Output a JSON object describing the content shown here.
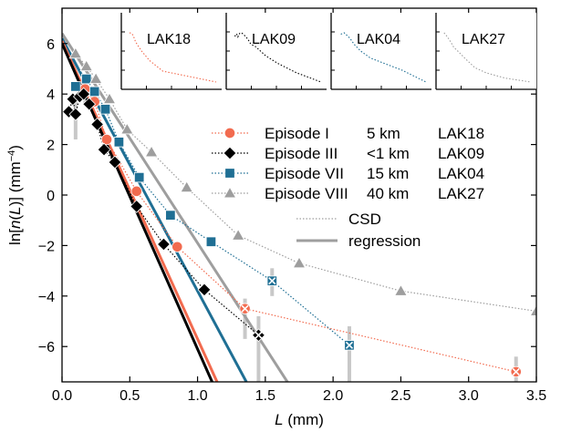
{
  "chart_data": {
    "type": "scatter",
    "xlabel_prefix": "L",
    "xlabel_unit": " (mm)",
    "ylabel_prefix": "ln[",
    "ylabel_var": "n",
    "ylabel_mid": "(",
    "ylabel_var2": "L",
    "ylabel_mid2": ")] (mm",
    "ylabel_sup": "−4",
    "ylabel_suffix": ")",
    "xlim": [
      0,
      3.5
    ],
    "ylim": [
      -7.4,
      7.4
    ],
    "xticks": [
      "0.0",
      "0.5",
      "1.0",
      "1.5",
      "2.0",
      "2.5",
      "3.0",
      "3.5"
    ],
    "xtick_values": [
      0,
      0.5,
      1.0,
      1.5,
      2.0,
      2.5,
      3.0,
      3.5
    ],
    "yticks": [
      "6",
      "4",
      "2",
      "0",
      "−2",
      "−4",
      "−6"
    ],
    "ytick_values": [
      6,
      4,
      2,
      0,
      -2,
      -4,
      -6
    ],
    "grid": false,
    "legend_position": "center-right",
    "series": [
      {
        "name": "Episode I",
        "distance": "5 km",
        "sample": "LAK18",
        "color": "#f26b4f",
        "marker": "circle",
        "x": [
          0.1,
          0.17,
          0.24,
          0.33,
          0.55,
          0.85,
          1.35,
          3.35
        ],
        "y": [
          4.3,
          4.2,
          3.7,
          2.2,
          0.15,
          -2.05,
          -4.5,
          -7.0
        ],
        "csd_x": [
          0.1,
          0.17,
          0.24,
          0.33,
          0.55,
          0.85,
          1.35,
          3.35
        ],
        "csd_y": [
          4.3,
          4.2,
          3.7,
          2.2,
          0.15,
          -2.05,
          -4.5,
          -7.0
        ],
        "reg_intercept": 6.1,
        "reg_slope": -11.8,
        "reg_xmax": 1.27
      },
      {
        "name": "Episode III",
        "distance": "<1 km",
        "sample": "LAK09",
        "color": "#000000",
        "marker": "diamond",
        "x": [
          0.05,
          0.08,
          0.1,
          0.13,
          0.16,
          0.2,
          0.26,
          0.31,
          0.39,
          0.55,
          0.75,
          1.05,
          1.45
        ],
        "y": [
          3.3,
          3.8,
          3.2,
          3.9,
          4.0,
          3.6,
          2.8,
          1.8,
          1.3,
          -0.45,
          -1.95,
          -3.75,
          -5.55
        ],
        "csd_x": [
          0.05,
          0.08,
          0.1,
          0.13,
          0.16,
          0.2,
          0.26,
          0.31,
          0.39,
          0.55,
          0.75,
          1.05,
          1.45
        ],
        "csd_y": [
          3.3,
          3.8,
          3.2,
          3.9,
          4.0,
          3.6,
          2.8,
          1.8,
          1.3,
          -0.45,
          -1.95,
          -3.75,
          -5.55
        ],
        "reg_intercept": 6.0,
        "reg_slope": -12.1,
        "reg_xmax": 1.12
      },
      {
        "name": "Episode VII",
        "distance": "15 km",
        "sample": "LAK04",
        "color": "#1f6f94",
        "marker": "square",
        "x": [
          0.1,
          0.18,
          0.24,
          0.32,
          0.42,
          0.57,
          0.8,
          1.1,
          1.55,
          2.12
        ],
        "y": [
          4.3,
          4.6,
          4.1,
          3.4,
          2.1,
          0.7,
          -0.8,
          -1.85,
          -3.4,
          -5.95
        ],
        "csd_x": [
          0.1,
          0.18,
          0.24,
          0.32,
          0.42,
          0.57,
          0.8,
          1.1,
          1.55,
          2.12
        ],
        "csd_y": [
          4.3,
          4.6,
          4.1,
          3.4,
          2.1,
          0.7,
          -0.8,
          -1.85,
          -3.4,
          -5.95
        ],
        "reg_intercept": 6.2,
        "reg_slope": -10.0,
        "reg_xmax": 1.36
      },
      {
        "name": "Episode VIII",
        "distance": "40 km",
        "sample": "LAK27",
        "color": "#9e9e9e",
        "marker": "triangle",
        "x": [
          0.1,
          0.18,
          0.25,
          0.35,
          0.48,
          0.66,
          0.92,
          1.3,
          1.75,
          2.5,
          3.5
        ],
        "y": [
          5.6,
          5.1,
          4.6,
          3.8,
          2.6,
          1.7,
          0.3,
          -1.6,
          -2.7,
          -3.8,
          -4.6
        ],
        "csd_x": [
          0.1,
          0.18,
          0.25,
          0.35,
          0.48,
          0.66,
          0.92,
          1.3,
          1.75,
          2.5,
          3.5
        ],
        "csd_y": [
          5.6,
          5.1,
          4.6,
          3.8,
          2.6,
          1.7,
          0.3,
          -1.6,
          -2.7,
          -3.8,
          -4.6
        ],
        "reg_intercept": 6.4,
        "reg_slope": -8.3,
        "reg_xmax": 1.68
      }
    ],
    "error_bars": [
      {
        "x": 0.1,
        "y": 3.2,
        "low": 2.2,
        "high": 3.9
      },
      {
        "x": 0.17,
        "y": 4.2,
        "low": 3.6,
        "high": 4.7
      },
      {
        "x": 1.35,
        "y": -4.5,
        "low": -5.7,
        "high": -4.1
      },
      {
        "x": 1.45,
        "y": -5.5,
        "low": -7.4,
        "high": -4.8
      },
      {
        "x": 1.55,
        "y": -3.4,
        "low": -4.0,
        "high": -2.9
      },
      {
        "x": 2.12,
        "y": -5.95,
        "low": -7.4,
        "high": -5.2
      },
      {
        "x": 3.35,
        "y": -7.0,
        "low": -7.4,
        "high": -6.4
      }
    ],
    "legend_extra": [
      {
        "label": "CSD",
        "style": "dotted"
      },
      {
        "label": "regression",
        "style": "solid"
      }
    ],
    "insets": [
      {
        "title": "LAK18",
        "series_index": 0
      },
      {
        "title": "LAK09",
        "series_index": 1
      },
      {
        "title": "LAK04",
        "series_index": 2
      },
      {
        "title": "LAK27",
        "series_index": 3
      }
    ]
  }
}
